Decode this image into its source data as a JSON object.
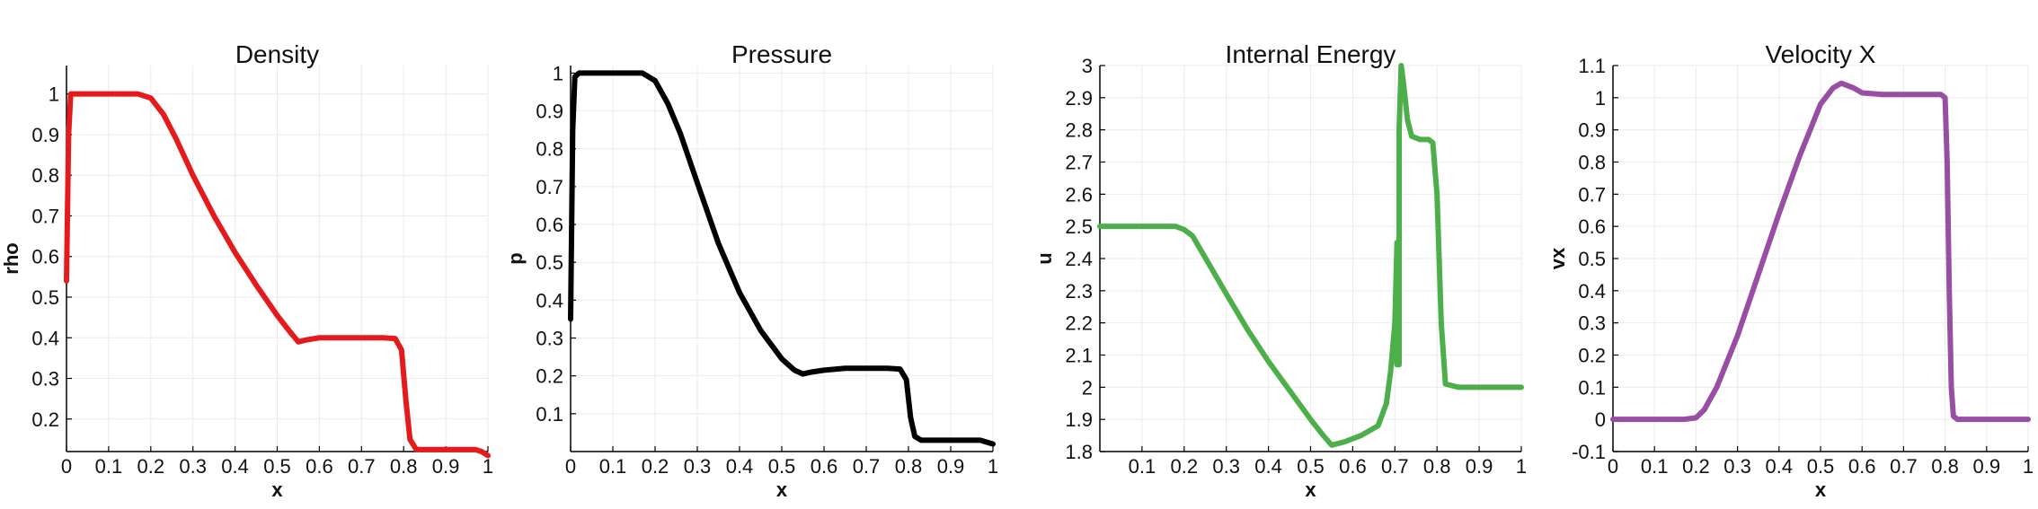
{
  "chart_data": [
    {
      "type": "line",
      "title": "Density",
      "xlabel": "x",
      "ylabel": "rho",
      "xlim": [
        0,
        1
      ],
      "ylim": [
        0.12,
        1.07
      ],
      "xticks": [
        0,
        0.1,
        0.2,
        0.3,
        0.4,
        0.5,
        0.6,
        0.7,
        0.8,
        0.9,
        1
      ],
      "xtick_labels": [
        "0",
        "0.1",
        "0.2",
        "0.3",
        "0.4",
        "0.5",
        "0.6",
        "0.7",
        "0.8",
        "0.9",
        "1"
      ],
      "yticks": [
        0.2,
        0.3,
        0.4,
        0.5,
        0.6,
        0.7,
        0.8,
        0.9,
        1
      ],
      "ytick_labels": [
        "0.2",
        "0.3",
        "0.4",
        "0.5",
        "0.6",
        "0.7",
        "0.8",
        "0.9",
        "1"
      ],
      "grid": true,
      "color": "#e41a1c",
      "series": [
        {
          "x": [
            0,
            0.005,
            0.01,
            0.02,
            0.1,
            0.17,
            0.2,
            0.23,
            0.26,
            0.3,
            0.35,
            0.4,
            0.45,
            0.5,
            0.53,
            0.55,
            0.57,
            0.6,
            0.65,
            0.7,
            0.75,
            0.78,
            0.795,
            0.805,
            0.815,
            0.83,
            0.9,
            0.97,
            0.985,
            1
          ],
          "y": [
            0.54,
            0.9,
            1.0,
            1.0,
            1.0,
            1.0,
            0.99,
            0.95,
            0.89,
            0.8,
            0.7,
            0.61,
            0.53,
            0.455,
            0.415,
            0.39,
            0.395,
            0.4,
            0.4,
            0.4,
            0.4,
            0.398,
            0.37,
            0.25,
            0.15,
            0.125,
            0.125,
            0.125,
            0.12,
            0.11
          ]
        }
      ]
    },
    {
      "type": "line",
      "title": "Pressure",
      "xlabel": "x",
      "ylabel": "p",
      "xlim": [
        0,
        1
      ],
      "ylim": [
        0.0,
        1.02
      ],
      "xticks": [
        0,
        0.1,
        0.2,
        0.3,
        0.4,
        0.5,
        0.6,
        0.7,
        0.8,
        0.9,
        1
      ],
      "xtick_labels": [
        "0",
        "0.1",
        "0.2",
        "0.3",
        "0.4",
        "0.5",
        "0.6",
        "0.7",
        "0.8",
        "0.9",
        "1"
      ],
      "yticks": [
        0.1,
        0.2,
        0.3,
        0.4,
        0.5,
        0.6,
        0.7,
        0.8,
        0.9,
        1
      ],
      "ytick_labels": [
        "0.1",
        "0.2",
        "0.3",
        "0.4",
        "0.5",
        "0.6",
        "0.7",
        "0.8",
        "0.9",
        "1"
      ],
      "grid": true,
      "color": "#000000",
      "series": [
        {
          "x": [
            0,
            0.005,
            0.01,
            0.02,
            0.1,
            0.17,
            0.2,
            0.23,
            0.26,
            0.3,
            0.35,
            0.4,
            0.45,
            0.5,
            0.53,
            0.55,
            0.57,
            0.6,
            0.65,
            0.7,
            0.75,
            0.78,
            0.795,
            0.805,
            0.815,
            0.83,
            0.9,
            0.97,
            0.985,
            1
          ],
          "y": [
            0.35,
            0.85,
            0.99,
            1.0,
            1.0,
            1.0,
            0.98,
            0.92,
            0.84,
            0.71,
            0.55,
            0.42,
            0.32,
            0.245,
            0.215,
            0.205,
            0.21,
            0.215,
            0.22,
            0.22,
            0.22,
            0.218,
            0.19,
            0.09,
            0.04,
            0.03,
            0.03,
            0.03,
            0.025,
            0.02
          ]
        }
      ]
    },
    {
      "type": "line",
      "title": "Internal Energy",
      "xlabel": "x",
      "ylabel": "u",
      "xlim": [
        0,
        1
      ],
      "ylim": [
        1.8,
        3.0
      ],
      "xticks": [
        0.1,
        0.2,
        0.3,
        0.4,
        0.5,
        0.6,
        0.7,
        0.8,
        0.9,
        1
      ],
      "xtick_labels": [
        "0.1",
        "0.2",
        "0.3",
        "0.4",
        "0.5",
        "0.6",
        "0.7",
        "0.8",
        "0.9",
        "1"
      ],
      "yticks": [
        1.8,
        1.9,
        2,
        2.1,
        2.2,
        2.3,
        2.4,
        2.5,
        2.6,
        2.7,
        2.8,
        2.9,
        3
      ],
      "ytick_labels": [
        "1.8",
        "1.9",
        "2",
        "2.1",
        "2.2",
        "2.3",
        "2.4",
        "2.5",
        "2.6",
        "2.7",
        "2.8",
        "2.9",
        "3"
      ],
      "grid": true,
      "color": "#4daf4a",
      "series": [
        {
          "x": [
            0,
            0.1,
            0.18,
            0.2,
            0.22,
            0.26,
            0.3,
            0.35,
            0.4,
            0.45,
            0.5,
            0.53,
            0.55,
            0.58,
            0.62,
            0.66,
            0.68,
            0.69,
            0.7,
            0.705,
            0.705,
            0.71,
            0.71,
            0.715,
            0.72,
            0.73,
            0.74,
            0.76,
            0.78,
            0.79,
            0.8,
            0.81,
            0.82,
            0.85,
            0.9,
            1.0
          ],
          "y": [
            2.5,
            2.5,
            2.5,
            2.49,
            2.47,
            2.38,
            2.29,
            2.18,
            2.08,
            1.99,
            1.9,
            1.85,
            1.82,
            1.83,
            1.85,
            1.88,
            1.95,
            2.05,
            2.2,
            2.45,
            2.07,
            2.07,
            2.8,
            3.0,
            2.95,
            2.83,
            2.78,
            2.77,
            2.77,
            2.76,
            2.6,
            2.2,
            2.01,
            2.0,
            2.0,
            2.0
          ]
        }
      ]
    },
    {
      "type": "line",
      "title": "Velocity X",
      "xlabel": "x",
      "ylabel": "vx",
      "xlim": [
        0,
        1
      ],
      "ylim": [
        -0.1,
        1.1
      ],
      "xticks": [
        0,
        0.1,
        0.2,
        0.3,
        0.4,
        0.5,
        0.6,
        0.7,
        0.8,
        0.9,
        1
      ],
      "xtick_labels": [
        "0",
        "0.1",
        "0.2",
        "0.3",
        "0.4",
        "0.5",
        "0.6",
        "0.7",
        "0.8",
        "0.9",
        "1"
      ],
      "yticks": [
        -0.1,
        0,
        0.1,
        0.2,
        0.3,
        0.4,
        0.5,
        0.6,
        0.7,
        0.8,
        0.9,
        1,
        1.1
      ],
      "ytick_labels": [
        "-0.1",
        "0",
        "0.1",
        "0.2",
        "0.3",
        "0.4",
        "0.5",
        "0.6",
        "0.7",
        "0.8",
        "0.9",
        "1",
        "1.1"
      ],
      "grid": true,
      "color": "#984ea3",
      "series": [
        {
          "x": [
            0,
            0.1,
            0.17,
            0.2,
            0.22,
            0.25,
            0.3,
            0.35,
            0.4,
            0.45,
            0.5,
            0.53,
            0.55,
            0.58,
            0.6,
            0.65,
            0.7,
            0.75,
            0.79,
            0.8,
            0.805,
            0.81,
            0.815,
            0.82,
            0.83,
            0.9,
            1.0
          ],
          "y": [
            0,
            0,
            0,
            0.005,
            0.03,
            0.1,
            0.26,
            0.45,
            0.64,
            0.82,
            0.98,
            1.03,
            1.045,
            1.03,
            1.015,
            1.01,
            1.01,
            1.01,
            1.01,
            1.0,
            0.8,
            0.4,
            0.1,
            0.01,
            0,
            0,
            0
          ]
        }
      ]
    }
  ]
}
